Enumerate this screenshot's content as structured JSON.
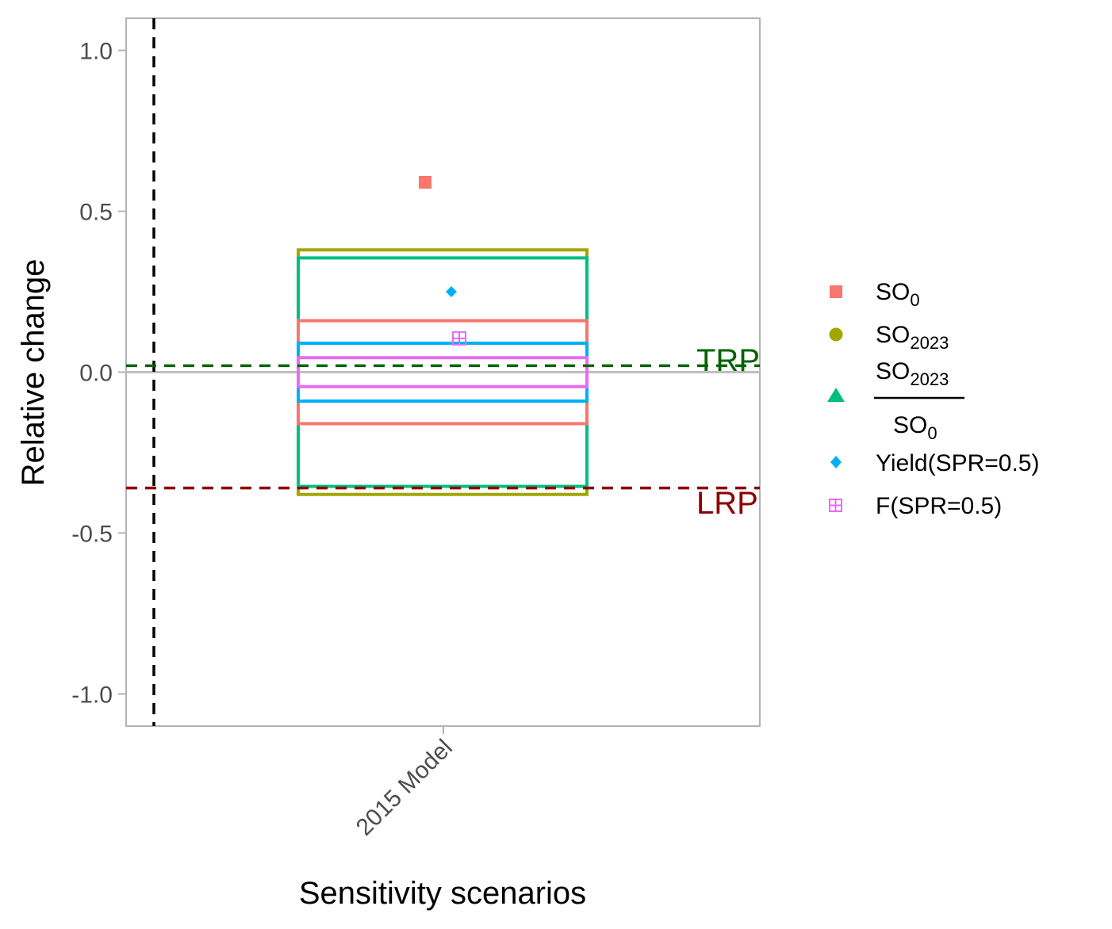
{
  "chart_data": {
    "type": "scatter",
    "xlabel": "Sensitivity scenarios",
    "ylabel": "Relative change",
    "ylim": [
      -1.1,
      1.1
    ],
    "yticks": [
      "1.0",
      "0.5",
      "0.0",
      "-0.5",
      "-1.0"
    ],
    "ytick_values": [
      1.0,
      0.5,
      0.0,
      -0.5,
      -1.0
    ],
    "categories": [
      "2015 Model"
    ],
    "grid": false,
    "legend_position": "right",
    "reference_lines": [
      {
        "label": "TRP",
        "y": 0.02,
        "color": "#006400",
        "style": "dashed"
      },
      {
        "label": "LRP",
        "y": -0.36,
        "color": "#8B0000",
        "style": "dashed"
      }
    ],
    "zero_line": {
      "y": 0,
      "color": "#bebebe"
    },
    "series": [
      {
        "name": "SO0",
        "legend_main": "SO",
        "legend_sub": "0",
        "marker": "square",
        "color": "#F8766D",
        "point": 0.59,
        "band": [
          -0.16,
          0.16
        ]
      },
      {
        "name": "SO2023",
        "legend_main": "SO",
        "legend_sub": "2023",
        "marker": "circle",
        "color": "#A3A500",
        "point": null,
        "band": [
          -0.38,
          0.38
        ]
      },
      {
        "name": "SO2023/SO0",
        "legend_num_main": "SO",
        "legend_num_sub": "2023",
        "legend_den_main": "SO",
        "legend_den_sub": "0",
        "marker": "triangle",
        "color": "#00BF7D",
        "point": null,
        "band": [
          -0.355,
          0.355
        ]
      },
      {
        "name": "Yield(SPR=0.5)",
        "legend_main": "Yield(SPR=0.5)",
        "marker": "diamond",
        "color": "#00B0F6",
        "point": 0.25,
        "band": [
          -0.09,
          0.09
        ]
      },
      {
        "name": "F(SPR=0.5)",
        "legend_main": "F(SPR=0.5)",
        "marker": "square-plus",
        "color": "#E76BF3",
        "point": 0.105,
        "band": [
          -0.045,
          0.045
        ]
      }
    ]
  }
}
